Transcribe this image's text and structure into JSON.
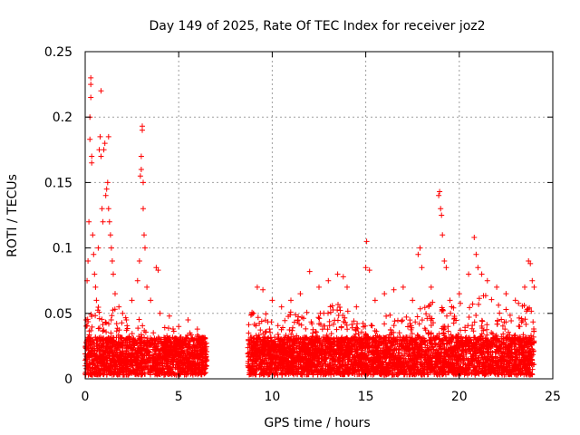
{
  "chart_data": {
    "type": "scatter",
    "title": "Day 149 of 2025, Rate Of TEC Index for receiver joz2",
    "xlabel": "GPS time / hours",
    "ylabel": "ROTI / TECUs",
    "xlim": [
      0,
      25
    ],
    "ylim": [
      0,
      0.25
    ],
    "x_ticks": [
      "0",
      "5",
      "10",
      "15",
      "20",
      "25"
    ],
    "y_ticks": [
      "0",
      "0.05",
      "0.1",
      "0.15",
      "0.2",
      "0.25"
    ],
    "x_tick_values": [
      0,
      5,
      10,
      15,
      20,
      25
    ],
    "y_tick_values": [
      0,
      0.05,
      0.1,
      0.15,
      0.2,
      0.25
    ],
    "grid": true,
    "marker": "+",
    "color": "#ff0000",
    "series": [
      {
        "name": "",
        "points": [
          [
            0.05,
            0.045
          ],
          [
            0.1,
            0.075
          ],
          [
            0.15,
            0.09
          ],
          [
            0.2,
            0.12
          ],
          [
            0.25,
            0.183
          ],
          [
            0.25,
            0.2
          ],
          [
            0.3,
            0.215
          ],
          [
            0.3,
            0.23
          ],
          [
            0.3,
            0.225
          ],
          [
            0.35,
            0.165
          ],
          [
            0.35,
            0.17
          ],
          [
            0.4,
            0.11
          ],
          [
            0.45,
            0.095
          ],
          [
            0.5,
            0.08
          ],
          [
            0.55,
            0.07
          ],
          [
            0.6,
            0.06
          ],
          [
            0.7,
            0.1
          ],
          [
            0.75,
            0.175
          ],
          [
            0.8,
            0.185
          ],
          [
            0.85,
            0.17
          ],
          [
            0.85,
            0.22
          ],
          [
            0.9,
            0.13
          ],
          [
            0.95,
            0.12
          ],
          [
            1.0,
            0.175
          ],
          [
            1.05,
            0.18
          ],
          [
            1.1,
            0.14
          ],
          [
            1.15,
            0.145
          ],
          [
            1.2,
            0.15
          ],
          [
            1.25,
            0.13
          ],
          [
            1.25,
            0.185
          ],
          [
            1.3,
            0.12
          ],
          [
            1.35,
            0.11
          ],
          [
            1.4,
            0.1
          ],
          [
            1.45,
            0.09
          ],
          [
            1.5,
            0.08
          ],
          [
            1.6,
            0.065
          ],
          [
            1.8,
            0.055
          ],
          [
            2.0,
            0.05
          ],
          [
            2.2,
            0.045
          ],
          [
            2.5,
            0.06
          ],
          [
            2.8,
            0.075
          ],
          [
            2.9,
            0.09
          ],
          [
            2.95,
            0.155
          ],
          [
            3.0,
            0.16
          ],
          [
            3.0,
            0.17
          ],
          [
            3.05,
            0.19
          ],
          [
            3.05,
            0.193
          ],
          [
            3.1,
            0.15
          ],
          [
            3.1,
            0.13
          ],
          [
            3.15,
            0.11
          ],
          [
            3.2,
            0.1
          ],
          [
            3.3,
            0.07
          ],
          [
            3.5,
            0.06
          ],
          [
            3.8,
            0.085
          ],
          [
            3.9,
            0.083
          ],
          [
            4.0,
            0.05
          ],
          [
            4.5,
            0.048
          ],
          [
            5.0,
            0.04
          ],
          [
            5.5,
            0.045
          ],
          [
            6.0,
            0.038
          ],
          [
            6.3,
            0.03
          ],
          [
            9.2,
            0.07
          ],
          [
            9.5,
            0.068
          ],
          [
            10.0,
            0.06
          ],
          [
            10.5,
            0.055
          ],
          [
            11.0,
            0.06
          ],
          [
            11.5,
            0.065
          ],
          [
            12.0,
            0.082
          ],
          [
            12.5,
            0.07
          ],
          [
            13.0,
            0.075
          ],
          [
            13.5,
            0.08
          ],
          [
            13.8,
            0.078
          ],
          [
            14.0,
            0.07
          ],
          [
            14.5,
            0.055
          ],
          [
            15.0,
            0.085
          ],
          [
            15.05,
            0.105
          ],
          [
            15.2,
            0.083
          ],
          [
            15.5,
            0.06
          ],
          [
            16.0,
            0.065
          ],
          [
            16.5,
            0.068
          ],
          [
            17.0,
            0.07
          ],
          [
            17.5,
            0.06
          ],
          [
            17.8,
            0.095
          ],
          [
            17.9,
            0.1
          ],
          [
            18.0,
            0.085
          ],
          [
            18.5,
            0.07
          ],
          [
            18.9,
            0.14
          ],
          [
            18.95,
            0.143
          ],
          [
            19.0,
            0.13
          ],
          [
            19.05,
            0.125
          ],
          [
            19.1,
            0.11
          ],
          [
            19.2,
            0.09
          ],
          [
            19.3,
            0.085
          ],
          [
            19.5,
            0.06
          ],
          [
            20.0,
            0.065
          ],
          [
            20.5,
            0.08
          ],
          [
            20.8,
            0.108
          ],
          [
            20.9,
            0.095
          ],
          [
            21.0,
            0.085
          ],
          [
            21.2,
            0.08
          ],
          [
            21.5,
            0.075
          ],
          [
            22.0,
            0.07
          ],
          [
            22.5,
            0.065
          ],
          [
            23.0,
            0.06
          ],
          [
            23.5,
            0.07
          ],
          [
            23.7,
            0.09
          ],
          [
            23.8,
            0.088
          ],
          [
            23.9,
            0.075
          ],
          [
            24.0,
            0.07
          ]
        ],
        "dense_band": {
          "segments": [
            [
              0.0,
              6.5
            ],
            [
              8.7,
              24.0
            ]
          ],
          "base_range": [
            0.003,
            0.032
          ],
          "upper_envelope": [
            [
              0.0,
              0.045
            ],
            [
              1.0,
              0.06
            ],
            [
              2.0,
              0.05
            ],
            [
              3.0,
              0.045
            ],
            [
              4.0,
              0.042
            ],
            [
              5.0,
              0.038
            ],
            [
              6.0,
              0.035
            ],
            [
              6.5,
              0.03
            ],
            [
              8.7,
              0.055
            ],
            [
              9.5,
              0.05
            ],
            [
              10.5,
              0.048
            ],
            [
              11.5,
              0.055
            ],
            [
              12.5,
              0.05
            ],
            [
              13.5,
              0.06
            ],
            [
              14.5,
              0.045
            ],
            [
              15.5,
              0.045
            ],
            [
              16.5,
              0.05
            ],
            [
              17.5,
              0.05
            ],
            [
              18.5,
              0.06
            ],
            [
              19.5,
              0.055
            ],
            [
              20.5,
              0.06
            ],
            [
              21.5,
              0.065
            ],
            [
              22.5,
              0.055
            ],
            [
              23.5,
              0.06
            ],
            [
              24.0,
              0.05
            ]
          ]
        }
      }
    ]
  }
}
